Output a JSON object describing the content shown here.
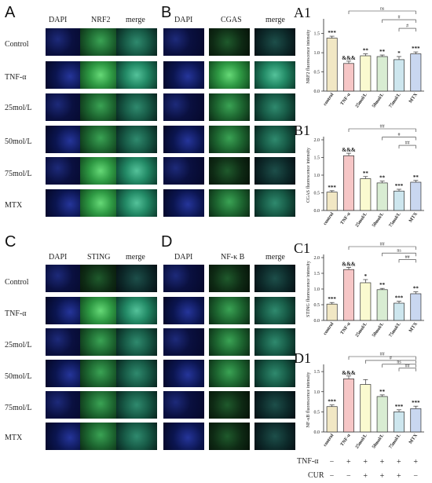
{
  "panels": {
    "A": {
      "letter": "A",
      "headers": [
        "DAPI",
        "NRF2",
        "merge"
      ]
    },
    "B": {
      "letter": "B",
      "headers": [
        "DAPI",
        "CGAS",
        "merge"
      ]
    },
    "C": {
      "letter": "C",
      "headers": [
        "DAPI",
        "STING",
        "merge"
      ]
    },
    "D": {
      "letter": "D",
      "headers": [
        "DAPI",
        "NF-κ B",
        "merge"
      ]
    }
  },
  "row_labels": [
    "Control",
    "TNF-α",
    "25mol/L",
    "50mol/L",
    "75mol/L",
    "MTX"
  ],
  "treatment": {
    "tnf_label": "TNF-α",
    "cur_label": "CUR",
    "tnf_signs": [
      "−",
      "+",
      "+",
      "+",
      "+",
      "+"
    ],
    "cur_signs": [
      "−",
      "−",
      "+",
      "+",
      "+",
      "−"
    ]
  },
  "chart_data": [
    {
      "letter": "A1",
      "type": "bar",
      "categories": [
        "control",
        "TNF-α",
        "25mol/L",
        "50mol/L",
        "75mol/L",
        "MTX"
      ],
      "values": [
        1.38,
        0.72,
        0.92,
        0.9,
        0.82,
        0.97
      ],
      "errors": [
        0.05,
        0.06,
        0.05,
        0.04,
        0.08,
        0.05
      ],
      "ylabel": "NRF2 fluorescence intensity",
      "ylim": [
        0,
        1.8
      ],
      "yticks": [
        0.0,
        0.5,
        1.0,
        1.5
      ],
      "sig": [
        "***",
        "&&&",
        "**",
        "**",
        "*",
        "***"
      ],
      "brackets": [
        {
          "label": "ns",
          "from": 1,
          "to": 5
        },
        {
          "label": "#",
          "from": 3,
          "to": 5
        },
        {
          "label": "#",
          "from": 4,
          "to": 5
        }
      ],
      "colors": [
        "#f1e7c4",
        "#f6c6c6",
        "#fafad0",
        "#d8ecd2",
        "#cde6ee",
        "#c9d7f0"
      ]
    },
    {
      "letter": "B1",
      "type": "bar",
      "categories": [
        "control",
        "TNF-α",
        "25mol/L",
        "50mol/L",
        "75mol/L",
        "MTX"
      ],
      "values": [
        0.52,
        1.55,
        0.9,
        0.78,
        0.55,
        0.8
      ],
      "errors": [
        0.04,
        0.07,
        0.06,
        0.05,
        0.05,
        0.05
      ],
      "ylabel": "CGAS fluorescence intensity",
      "ylim": [
        0,
        2.0
      ],
      "yticks": [
        0.0,
        0.5,
        1.0,
        1.5,
        2.0
      ],
      "sig": [
        "***",
        "&&&",
        "**",
        "**",
        "***",
        "**"
      ],
      "brackets": [
        {
          "label": "##",
          "from": 1,
          "to": 5
        },
        {
          "label": "#",
          "from": 3,
          "to": 5
        },
        {
          "label": "##",
          "from": 4,
          "to": 5
        }
      ],
      "colors": [
        "#f1e7c4",
        "#f6c6c6",
        "#fafad0",
        "#d8ecd2",
        "#cde6ee",
        "#c9d7f0"
      ]
    },
    {
      "letter": "C1",
      "type": "bar",
      "categories": [
        "control",
        "TNF-α",
        "25mol/L",
        "50mol/L",
        "75mol/L",
        "MTX"
      ],
      "values": [
        0.52,
        1.62,
        1.2,
        0.98,
        0.55,
        0.85
      ],
      "errors": [
        0.05,
        0.07,
        0.1,
        0.04,
        0.06,
        0.06
      ],
      "ylabel": "STING fluorescence intensity",
      "ylim": [
        0,
        2.0
      ],
      "yticks": [
        0.0,
        0.5,
        1.0,
        1.5,
        2.0
      ],
      "sig": [
        "***",
        "&&&",
        "*",
        "**",
        "***",
        "**"
      ],
      "brackets": [
        {
          "label": "##",
          "from": 1,
          "to": 5
        },
        {
          "label": "ns",
          "from": 3,
          "to": 5
        },
        {
          "label": "##",
          "from": 4,
          "to": 5
        }
      ],
      "colors": [
        "#f1e7c4",
        "#f6c6c6",
        "#fafad0",
        "#d8ecd2",
        "#cde6ee",
        "#c9d7f0"
      ]
    },
    {
      "letter": "D1",
      "type": "bar",
      "categories": [
        "control",
        "TNF-α",
        "25mol/L",
        "50mol/L",
        "75mol/L",
        "MTX"
      ],
      "values": [
        0.63,
        1.32,
        1.18,
        0.88,
        0.5,
        0.58
      ],
      "errors": [
        0.04,
        0.07,
        0.12,
        0.04,
        0.05,
        0.06
      ],
      "ylabel": "NF-κB fluorescence intensity",
      "ylim": [
        0,
        1.6
      ],
      "yticks": [
        0.0,
        0.5,
        1.0,
        1.5
      ],
      "sig": [
        "***",
        "&&&",
        "",
        "**",
        "***",
        "***"
      ],
      "brackets": [
        {
          "label": "##",
          "from": 1,
          "to": 5
        },
        {
          "label": "#",
          "from": 2,
          "to": 5
        },
        {
          "label": "ns",
          "from": 3,
          "to": 5
        },
        {
          "label": "##",
          "from": 4,
          "to": 5
        }
      ],
      "colors": [
        "#f1e7c4",
        "#f6c6c6",
        "#fafad0",
        "#d8ecd2",
        "#cde6ee",
        "#c9d7f0"
      ]
    }
  ]
}
